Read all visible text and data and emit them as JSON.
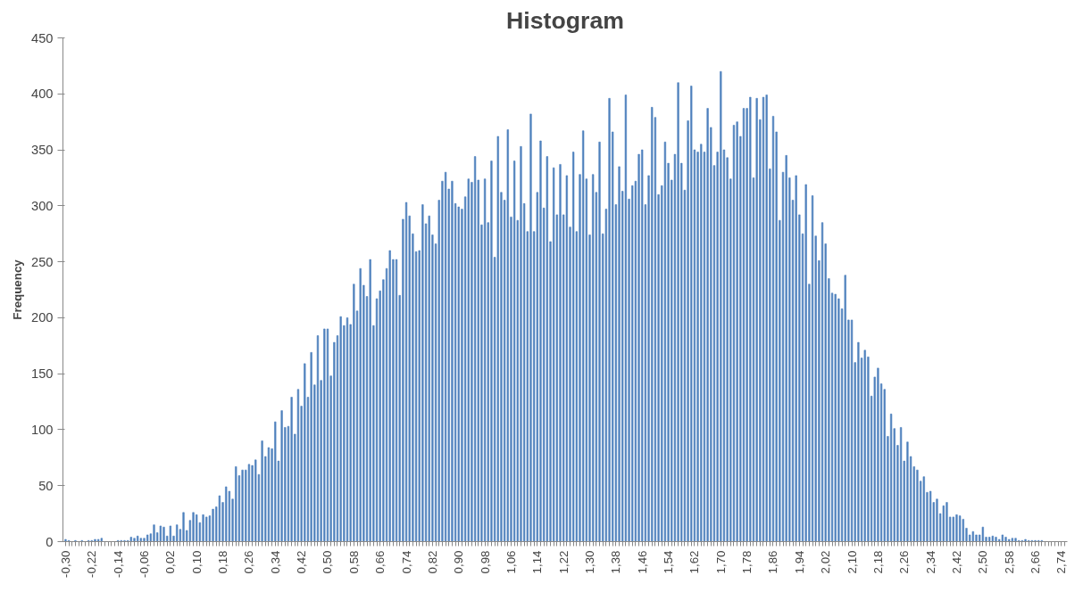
{
  "chart_data": {
    "type": "bar",
    "title": "Histogram",
    "ylabel": "Frequency",
    "categories": [
      "-0,30",
      null,
      null,
      null,
      null,
      null,
      null,
      null,
      "-0,22",
      null,
      null,
      null,
      null,
      null,
      null,
      null,
      "-0,14",
      null,
      null,
      null,
      null,
      null,
      null,
      null,
      "-0,06",
      null,
      null,
      null,
      null,
      null,
      null,
      null,
      "0,02",
      null,
      null,
      null,
      null,
      null,
      null,
      null,
      "0,10",
      null,
      null,
      null,
      null,
      null,
      null,
      null,
      "0,18",
      null,
      null,
      null,
      null,
      null,
      null,
      null,
      "0,26",
      null,
      null,
      null,
      null,
      null,
      null,
      null,
      "0,34",
      null,
      null,
      null,
      null,
      null,
      null,
      null,
      "0,42",
      null,
      null,
      null,
      null,
      null,
      null,
      null,
      "0,50",
      null,
      null,
      null,
      null,
      null,
      null,
      null,
      "0,58",
      null,
      null,
      null,
      null,
      null,
      null,
      null,
      "0,66",
      null,
      null,
      null,
      null,
      null,
      null,
      null,
      "0,74",
      null,
      null,
      null,
      null,
      null,
      null,
      null,
      "0,82",
      null,
      null,
      null,
      null,
      null,
      null,
      null,
      "0,90",
      null,
      null,
      null,
      null,
      null,
      null,
      null,
      "0,98",
      null,
      null,
      null,
      null,
      null,
      null,
      null,
      "1,06",
      null,
      null,
      null,
      null,
      null,
      null,
      null,
      "1,14",
      null,
      null,
      null,
      null,
      null,
      null,
      null,
      "1,22",
      null,
      null,
      null,
      null,
      null,
      null,
      null,
      "1,30",
      null,
      null,
      null,
      null,
      null,
      null,
      null,
      "1,38",
      null,
      null,
      null,
      null,
      null,
      null,
      null,
      "1,46",
      null,
      null,
      null,
      null,
      null,
      null,
      null,
      "1,54",
      null,
      null,
      null,
      null,
      null,
      null,
      null,
      "1,62",
      null,
      null,
      null,
      null,
      null,
      null,
      null,
      "1,70",
      null,
      null,
      null,
      null,
      null,
      null,
      null,
      "1,78",
      null,
      null,
      null,
      null,
      null,
      null,
      null,
      "1,86",
      null,
      null,
      null,
      null,
      null,
      null,
      null,
      "1,94",
      null,
      null,
      null,
      null,
      null,
      null,
      null,
      "2,02",
      null,
      null,
      null,
      null,
      null,
      null,
      null,
      "2,10",
      null,
      null,
      null,
      null,
      null,
      null,
      null,
      "2,18",
      null,
      null,
      null,
      null,
      null,
      null,
      null,
      "2,26",
      null,
      null,
      null,
      null,
      null,
      null,
      null,
      "2,34",
      null,
      null,
      null,
      null,
      null,
      null,
      null,
      "2,42",
      null,
      null,
      null,
      null,
      null,
      null,
      null,
      "2,50",
      null,
      null,
      null,
      null,
      null,
      null,
      null,
      "2,58",
      null,
      null,
      null,
      null,
      null,
      null,
      null,
      "2,66",
      null,
      null,
      null,
      null,
      null,
      null,
      null,
      "2,74",
      null
    ],
    "values": [
      2,
      1,
      0,
      1,
      0,
      1,
      0,
      1,
      1,
      2,
      2,
      3,
      0,
      0,
      0,
      0,
      1,
      1,
      1,
      1,
      4,
      3,
      5,
      3,
      3,
      6,
      7,
      15,
      8,
      14,
      13,
      5,
      14,
      5,
      15,
      11,
      26,
      10,
      19,
      26,
      24,
      17,
      24,
      22,
      23,
      29,
      31,
      41,
      35,
      49,
      45,
      38,
      67,
      59,
      64,
      64,
      69,
      68,
      73,
      60,
      90,
      76,
      84,
      83,
      107,
      72,
      117,
      102,
      103,
      129,
      96,
      136,
      121,
      159,
      129,
      169,
      140,
      184,
      144,
      190,
      190,
      148,
      178,
      184,
      201,
      193,
      200,
      194,
      230,
      206,
      244,
      229,
      219,
      252,
      193,
      217,
      224,
      234,
      244,
      260,
      252,
      252,
      220,
      288,
      303,
      291,
      275,
      259,
      260,
      301,
      284,
      291,
      274,
      266,
      305,
      322,
      330,
      315,
      322,
      302,
      299,
      297,
      308,
      324,
      321,
      344,
      323,
      283,
      324,
      285,
      340,
      254,
      362,
      312,
      305,
      368,
      290,
      340,
      287,
      353,
      302,
      277,
      382,
      277,
      312,
      358,
      298,
      344,
      268,
      334,
      292,
      337,
      292,
      327,
      281,
      348,
      277,
      328,
      367,
      324,
      274,
      328,
      312,
      357,
      275,
      297,
      396,
      366,
      301,
      335,
      313,
      399,
      306,
      318,
      322,
      346,
      350,
      301,
      327,
      388,
      379,
      310,
      318,
      357,
      338,
      323,
      346,
      410,
      338,
      314,
      376,
      407,
      350,
      348,
      355,
      348,
      387,
      370,
      336,
      348,
      420,
      350,
      343,
      324,
      372,
      375,
      362,
      387,
      387,
      397,
      325,
      396,
      377,
      397,
      399,
      333,
      380,
      366,
      287,
      330,
      345,
      325,
      305,
      327,
      292,
      275,
      319,
      230,
      309,
      273,
      251,
      285,
      266,
      235,
      222,
      221,
      217,
      208,
      238,
      198,
      198,
      160,
      178,
      164,
      171,
      165,
      130,
      147,
      155,
      141,
      136,
      94,
      114,
      101,
      86,
      102,
      72,
      89,
      76,
      67,
      64,
      54,
      58,
      44,
      45,
      35,
      38,
      25,
      32,
      35,
      22,
      22,
      24,
      23,
      20,
      12,
      6,
      9,
      6,
      6,
      13,
      4,
      4,
      5,
      4,
      2,
      6,
      4,
      2,
      3,
      3,
      1,
      1,
      2,
      1,
      1,
      1,
      1,
      1,
      0,
      0,
      0,
      0,
      0,
      0,
      0
    ],
    "color": "#4f81bd",
    "ylim": [
      0,
      450
    ],
    "yticks": [
      0,
      50,
      100,
      150,
      200,
      250,
      300,
      350,
      400,
      450
    ],
    "grid": false
  }
}
